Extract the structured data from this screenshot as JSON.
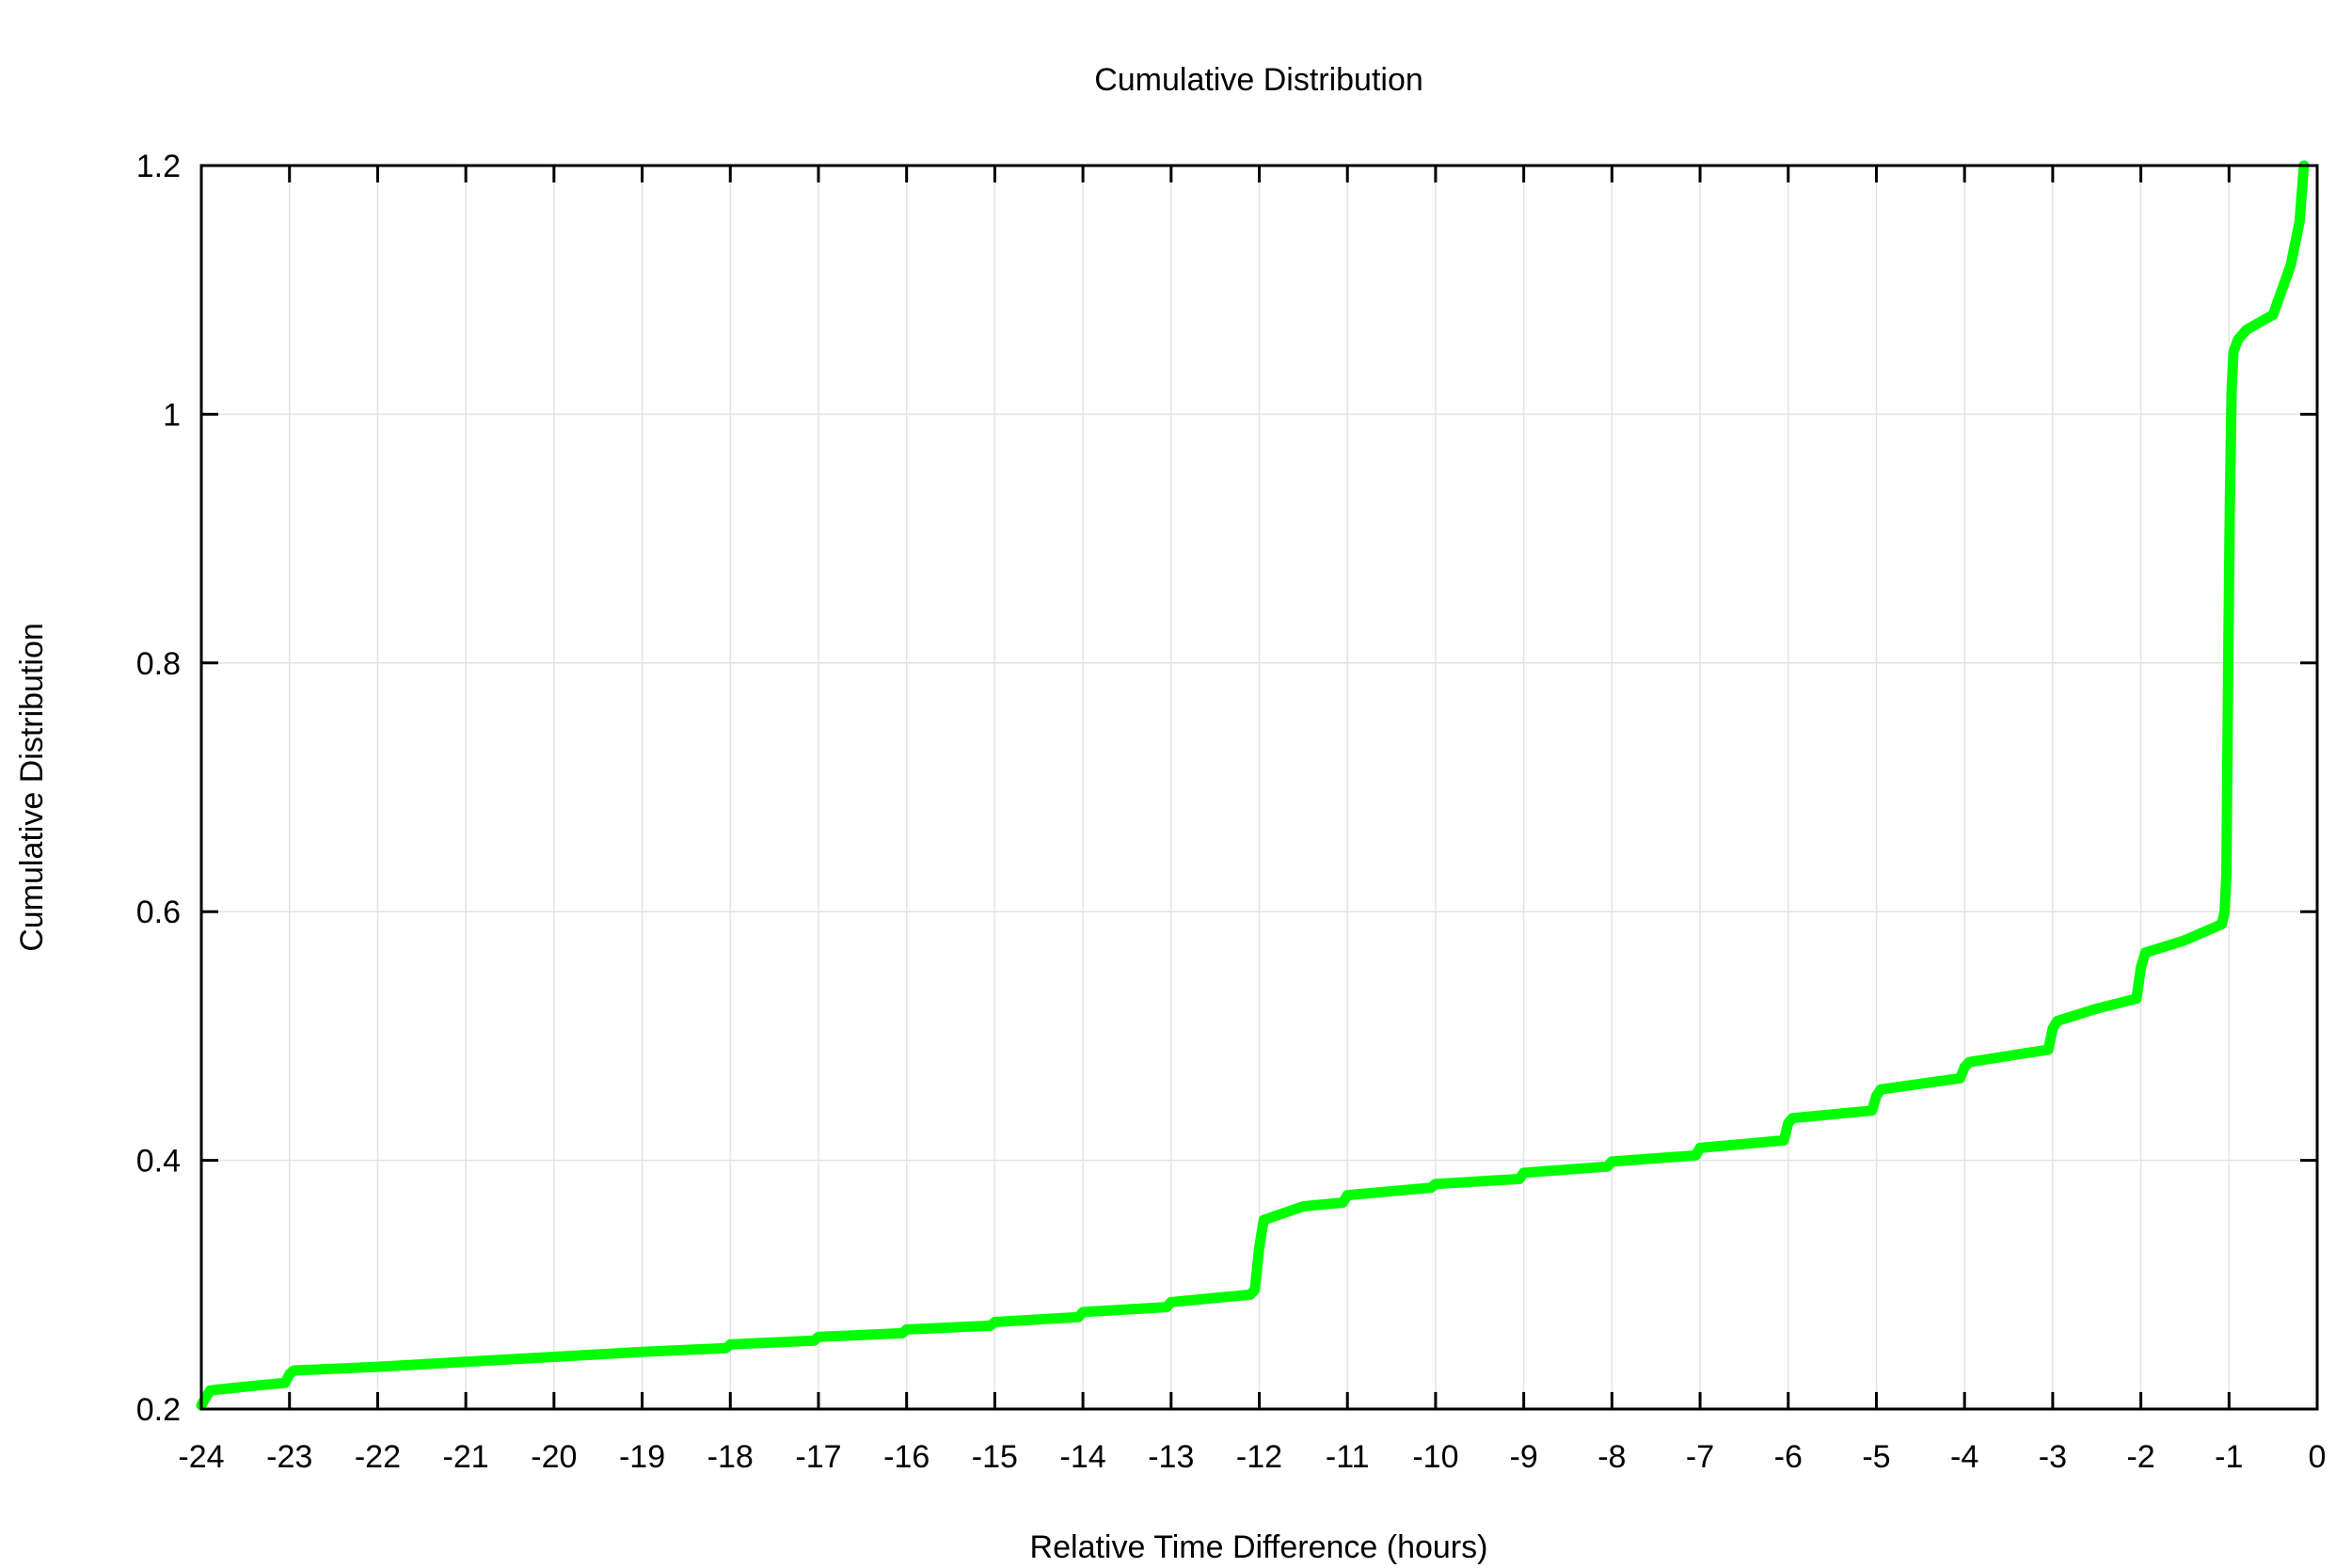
{
  "chart_data": {
    "type": "line",
    "title": "Cumulative Distribution",
    "xlabel": "Relative Time Difference (hours)",
    "ylabel": "Cumulative Distribution",
    "xlim": [
      -24,
      0
    ],
    "ylim": [
      0.2,
      1.2
    ],
    "x_ticks": [
      -24,
      -23,
      -22,
      -21,
      -20,
      -19,
      -18,
      -17,
      -16,
      -15,
      -14,
      -13,
      -12,
      -11,
      -10,
      -9,
      -8,
      -7,
      -6,
      -5,
      -4,
      -3,
      -2,
      -1,
      0
    ],
    "x_tick_labels": [
      "-24",
      "-23",
      "-22",
      "-21",
      "-20",
      "-19",
      "-18",
      "-17",
      "-16",
      "-15",
      "-14",
      "-13",
      "-12",
      "-11",
      "-10",
      "-9",
      "-8",
      "-7",
      "-6",
      "-5",
      "-4",
      "-3",
      "-2",
      "-1",
      "0"
    ],
    "y_ticks": [
      0.2,
      0.4,
      0.6,
      0.8,
      1.0,
      1.2
    ],
    "y_tick_labels": [
      "0.2",
      "0.4",
      "0.6",
      "0.8",
      "1",
      "1.2"
    ],
    "grid": true,
    "legend": "none",
    "series": [
      {
        "color": "#00ff00",
        "x": [
          -24.0,
          -23.9,
          -23.5,
          -23.05,
          -23.0,
          -22.95,
          -22.0,
          -21.0,
          -20.0,
          -19.0,
          -18.05,
          -18.0,
          -17.05,
          -17.0,
          -16.05,
          -16.0,
          -15.05,
          -15.0,
          -14.05,
          -14.0,
          -13.05,
          -13.0,
          -12.1,
          -12.05,
          -12.0,
          -11.95,
          -11.5,
          -11.05,
          -11.0,
          -10.05,
          -10.0,
          -9.05,
          -9.0,
          -8.05,
          -8.0,
          -7.05,
          -7.0,
          -6.05,
          -6.0,
          -5.95,
          -5.05,
          -5.0,
          -4.95,
          -4.05,
          -4.0,
          -3.95,
          -3.05,
          -3.0,
          -2.95,
          -2.5,
          -2.05,
          -2.0,
          -1.95,
          -1.5,
          -1.08,
          -1.05,
          -1.03,
          -1.01,
          -0.99,
          -0.97,
          -0.95,
          -0.9,
          -0.8,
          -0.5,
          -0.4,
          -0.3,
          -0.2,
          -0.15
        ],
        "y": [
          0.203,
          0.215,
          0.218,
          0.221,
          0.228,
          0.231,
          0.234,
          0.238,
          0.242,
          0.246,
          0.249,
          0.252,
          0.255,
          0.258,
          0.261,
          0.264,
          0.267,
          0.27,
          0.274,
          0.278,
          0.282,
          0.286,
          0.292,
          0.296,
          0.33,
          0.352,
          0.363,
          0.366,
          0.372,
          0.378,
          0.381,
          0.385,
          0.39,
          0.395,
          0.399,
          0.404,
          0.41,
          0.416,
          0.43,
          0.434,
          0.44,
          0.452,
          0.457,
          0.466,
          0.475,
          0.479,
          0.489,
          0.506,
          0.512,
          0.522,
          0.53,
          0.555,
          0.567,
          0.577,
          0.59,
          0.6,
          0.63,
          0.8,
          0.93,
          1.02,
          1.05,
          1.06,
          1.068,
          1.08,
          1.1,
          1.12,
          1.155,
          1.2
        ]
      }
    ]
  }
}
